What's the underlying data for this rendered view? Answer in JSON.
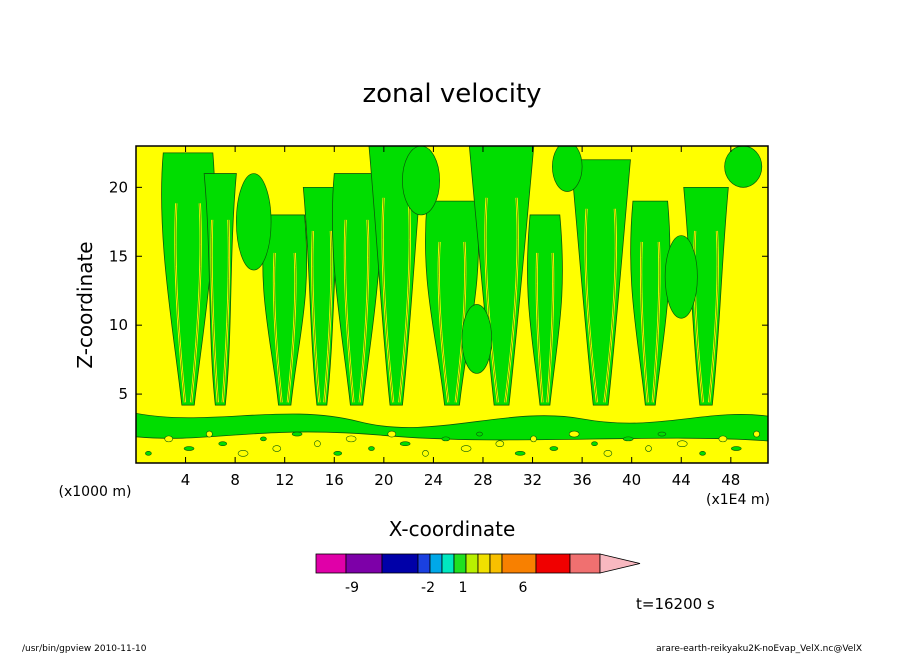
{
  "chart_data": {
    "type": "heatmap",
    "title": "zonal velocity",
    "xlabel": "X-coordinate",
    "ylabel": "Z-coordinate",
    "x_unit_note": "(x1E4 m)",
    "y_unit_note": "(x1000 m)",
    "xlim": [
      0,
      51
    ],
    "ylim": [
      0,
      23
    ],
    "x_ticks": [
      4,
      8,
      12,
      16,
      20,
      24,
      28,
      32,
      36,
      40,
      44,
      48
    ],
    "y_ticks": [
      5,
      10,
      15,
      20
    ],
    "time_label": "t=16200 s",
    "colorbar": {
      "colors": [
        "#e000a8",
        "#7d00a8",
        "#0000a8",
        "#1a40e0",
        "#00a8e8",
        "#00e8c0",
        "#20e020",
        "#b8f000",
        "#f0e000",
        "#f8c000",
        "#f88000",
        "#f00000",
        "#f07070",
        "#f8b8c0"
      ],
      "labels": [
        "-9",
        "-2",
        "1",
        "6"
      ]
    },
    "fields": {
      "positive_color": "#ffff00",
      "negative_color": "#00dd00",
      "contour_color": "#000000"
    }
  },
  "footer": {
    "left": "/usr/bin/gpview   2010-11-10",
    "right": "arare-earth-reikyaku2K-noEvap_VelX.nc@VelX"
  }
}
